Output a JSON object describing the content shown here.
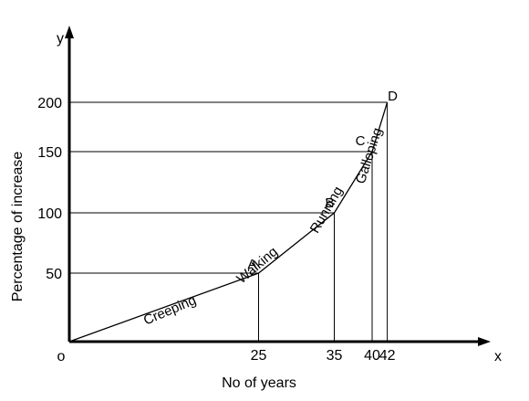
{
  "chart_data": {
    "type": "line",
    "xlabel": "No of years",
    "ylabel": "Percentage of increase",
    "x_axis_letter": "x",
    "y_axis_letter": "y",
    "origin_label": "o",
    "xlim": [
      0,
      42
    ],
    "ylim": [
      0,
      200
    ],
    "x_ticks": [
      "25",
      "35",
      "40",
      "42"
    ],
    "y_ticks": [
      "50",
      "100",
      "150",
      "200"
    ],
    "series": [
      {
        "x": [
          0,
          25,
          35,
          40,
          42
        ],
        "y": [
          0,
          50,
          100,
          150,
          200
        ]
      }
    ],
    "points": [
      {
        "label": "A",
        "x": 25,
        "y": 50
      },
      {
        "label": "B",
        "x": 35,
        "y": 100
      },
      {
        "label": "C",
        "x": 40,
        "y": 150
      },
      {
        "label": "D",
        "x": 42,
        "y": 200
      }
    ],
    "segments": [
      "Creeping",
      "Walking",
      "Running",
      "Galloping"
    ],
    "grid": false,
    "guide_lines": true,
    "colors": {
      "line": "#000000",
      "text": "#000000"
    }
  }
}
